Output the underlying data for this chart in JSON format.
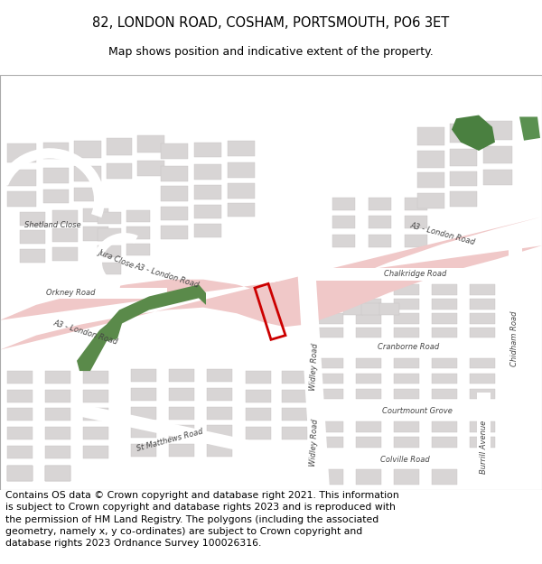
{
  "title_line1": "82, LONDON ROAD, COSHAM, PORTSMOUTH, PO6 3ET",
  "title_line2": "Map shows position and indicative extent of the property.",
  "footer_text": "Contains OS data © Crown copyright and database right 2021. This information is subject to Crown copyright and database rights 2023 and is reproduced with the permission of HM Land Registry. The polygons (including the associated geometry, namely x, y co-ordinates) are subject to Crown copyright and database rights 2023 Ordnance Survey 100026316.",
  "map_bg": "#f2f0f0",
  "road_pink": "#f0c8c8",
  "building_color": "#d8d5d5",
  "building_edge": "#c8c5c5",
  "green_color": "#5a8a4a",
  "red_polygon": "#cc0000",
  "white_road": "#ffffff",
  "title_fontsize": 10.5,
  "subtitle_fontsize": 9,
  "footer_fontsize": 7.8,
  "road_label_color": "#444444",
  "road_label_size": 6.0
}
